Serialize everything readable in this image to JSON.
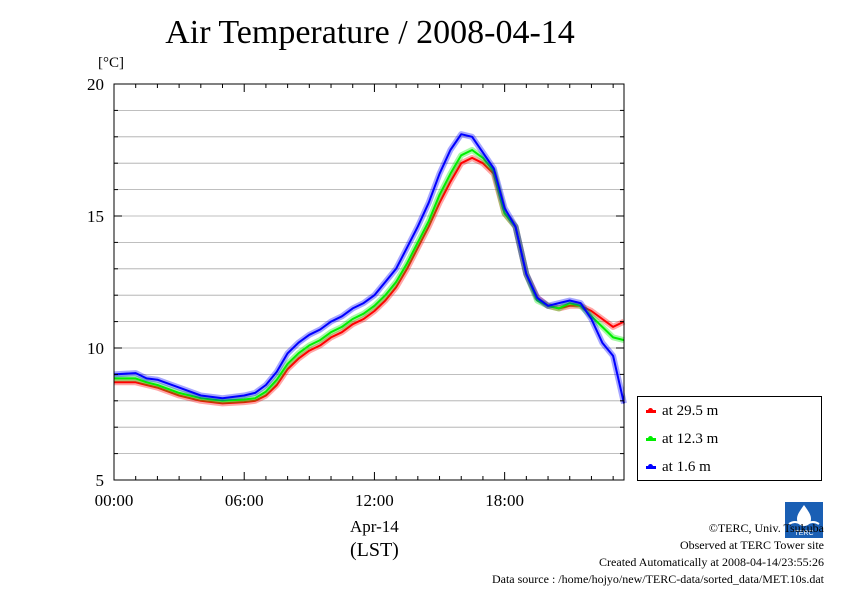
{
  "header": {
    "title": "Air Temperature / 2008-04-14",
    "unit_label": "[°C]"
  },
  "colors": {
    "series_29_5": "#ff0000",
    "series_12_3": "#00ee00",
    "series_1_6": "#0000ff",
    "grid": "#aaaaaa"
  },
  "chart_data": {
    "type": "line",
    "title": "Air Temperature / 2008-04-14",
    "ylabel": "[°C]",
    "xlabel": "Apr-14 (LST)",
    "x_units": "hours",
    "xlim": [
      0,
      23.5
    ],
    "ylim": [
      5,
      20
    ],
    "yticks": [
      5,
      10,
      15,
      20
    ],
    "xticks": [
      {
        "value": 0,
        "label": "00:00"
      },
      {
        "value": 6,
        "label": "06:00"
      },
      {
        "value": 12,
        "label": "12:00"
      },
      {
        "value": 18,
        "label": "18:00"
      }
    ],
    "date_label": "Apr-14",
    "tz_label": "(LST)",
    "grid": true,
    "legend_position": "right",
    "series": [
      {
        "name": "at 29.5 m",
        "color": "#ff0000",
        "x": [
          0,
          1,
          1.5,
          2,
          3,
          4,
          5,
          6,
          6.5,
          7,
          7.5,
          8,
          8.5,
          9,
          9.5,
          10,
          10.5,
          11,
          11.5,
          12,
          12.5,
          13,
          13.5,
          14,
          14.5,
          15,
          15.5,
          16,
          16.5,
          17,
          17.5,
          18,
          18.5,
          19,
          19.5,
          20,
          20.5,
          21,
          21.5,
          22,
          22.5,
          23,
          23.5
        ],
        "y": [
          8.7,
          8.7,
          8.6,
          8.5,
          8.2,
          8.0,
          7.9,
          7.95,
          8.0,
          8.2,
          8.6,
          9.2,
          9.6,
          9.9,
          10.1,
          10.4,
          10.6,
          10.9,
          11.1,
          11.4,
          11.8,
          12.3,
          13.0,
          13.8,
          14.6,
          15.5,
          16.3,
          17.0,
          17.2,
          17.0,
          16.6,
          15.1,
          14.6,
          12.8,
          11.9,
          11.6,
          11.5,
          11.6,
          11.6,
          11.4,
          11.1,
          10.8,
          11.0
        ]
      },
      {
        "name": "at 12.3 m",
        "color": "#00ee00",
        "x": [
          0,
          1,
          1.5,
          2,
          3,
          4,
          5,
          6,
          6.5,
          7,
          7.5,
          8,
          8.5,
          9,
          9.5,
          10,
          10.5,
          11,
          11.5,
          12,
          12.5,
          13,
          13.5,
          14,
          14.5,
          15,
          15.5,
          16,
          16.5,
          17,
          17.5,
          18,
          18.5,
          19,
          19.5,
          20,
          20.5,
          21,
          21.5,
          22,
          22.5,
          23,
          23.5
        ],
        "y": [
          8.85,
          8.85,
          8.7,
          8.6,
          8.3,
          8.1,
          8.0,
          8.05,
          8.1,
          8.35,
          8.8,
          9.4,
          9.8,
          10.1,
          10.3,
          10.6,
          10.8,
          11.1,
          11.3,
          11.6,
          12.0,
          12.5,
          13.2,
          14.0,
          14.8,
          15.8,
          16.6,
          17.3,
          17.5,
          17.2,
          16.7,
          15.1,
          14.6,
          12.8,
          11.8,
          11.6,
          11.5,
          11.7,
          11.6,
          11.2,
          10.8,
          10.4,
          10.3
        ]
      },
      {
        "name": "at 1.6 m",
        "color": "#0000ff",
        "x": [
          0,
          1,
          1.5,
          2,
          3,
          4,
          5,
          6,
          6.5,
          7,
          7.5,
          8,
          8.5,
          9,
          9.5,
          10,
          10.5,
          11,
          11.5,
          12,
          12.5,
          13,
          13.5,
          14,
          14.5,
          15,
          15.5,
          16,
          16.5,
          17,
          17.5,
          18,
          18.5,
          19,
          19.5,
          20,
          20.5,
          21,
          21.5,
          22,
          22.5,
          23,
          23.5
        ],
        "y": [
          9.0,
          9.05,
          8.85,
          8.8,
          8.5,
          8.2,
          8.1,
          8.2,
          8.3,
          8.6,
          9.1,
          9.8,
          10.2,
          10.5,
          10.7,
          11.0,
          11.2,
          11.5,
          11.7,
          12.0,
          12.5,
          13.0,
          13.8,
          14.6,
          15.5,
          16.6,
          17.5,
          18.1,
          18.0,
          17.4,
          16.8,
          15.3,
          14.6,
          12.8,
          11.9,
          11.6,
          11.7,
          11.8,
          11.7,
          11.1,
          10.2,
          9.7,
          7.9
        ]
      }
    ]
  },
  "legend": {
    "items": [
      {
        "label": "at 29.5 m",
        "color": "#ff0000"
      },
      {
        "label": "at 12.3 m",
        "color": "#00ee00"
      },
      {
        "label": "at 1.6 m",
        "color": "#0000ff"
      }
    ]
  },
  "footer": {
    "copyright": "©TERC, Univ. Tsukuba",
    "observed": "Observed at TERC Tower site",
    "created": "Created Automatically at 2008-04-14/23:55:26",
    "source": "Data source : /home/hojyo/new/TERC-data/sorted_data/MET.10s.dat",
    "logo_text": "TERC"
  }
}
